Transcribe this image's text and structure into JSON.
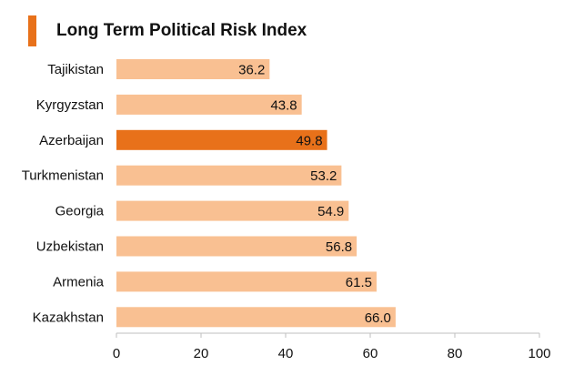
{
  "title": "Long Term Political Risk Index",
  "colors": {
    "accent": "#e8711a",
    "bar": "#f9c092",
    "highlight": "#e8711a",
    "axis": "#bfbfbf"
  },
  "chart_data": {
    "type": "bar",
    "orientation": "horizontal",
    "title": "Long Term Political Risk Index",
    "categories": [
      "Tajikistan",
      "Kyrgyzstan",
      "Azerbaijan",
      "Turkmenistan",
      "Georgia",
      "Uzbekistan",
      "Armenia",
      "Kazakhstan"
    ],
    "values": [
      36.2,
      43.8,
      49.8,
      53.2,
      54.9,
      56.8,
      61.5,
      66.0
    ],
    "value_labels": [
      "36.2",
      "43.8",
      "49.8",
      "53.2",
      "54.9",
      "56.8",
      "61.5",
      "66.0"
    ],
    "highlight": "Azerbaijan",
    "xlim": [
      0,
      100
    ],
    "xticks": [
      "0",
      "20",
      "40",
      "60",
      "80",
      "100"
    ],
    "xlabel": "",
    "ylabel": "",
    "grid": false,
    "legend": "none"
  }
}
